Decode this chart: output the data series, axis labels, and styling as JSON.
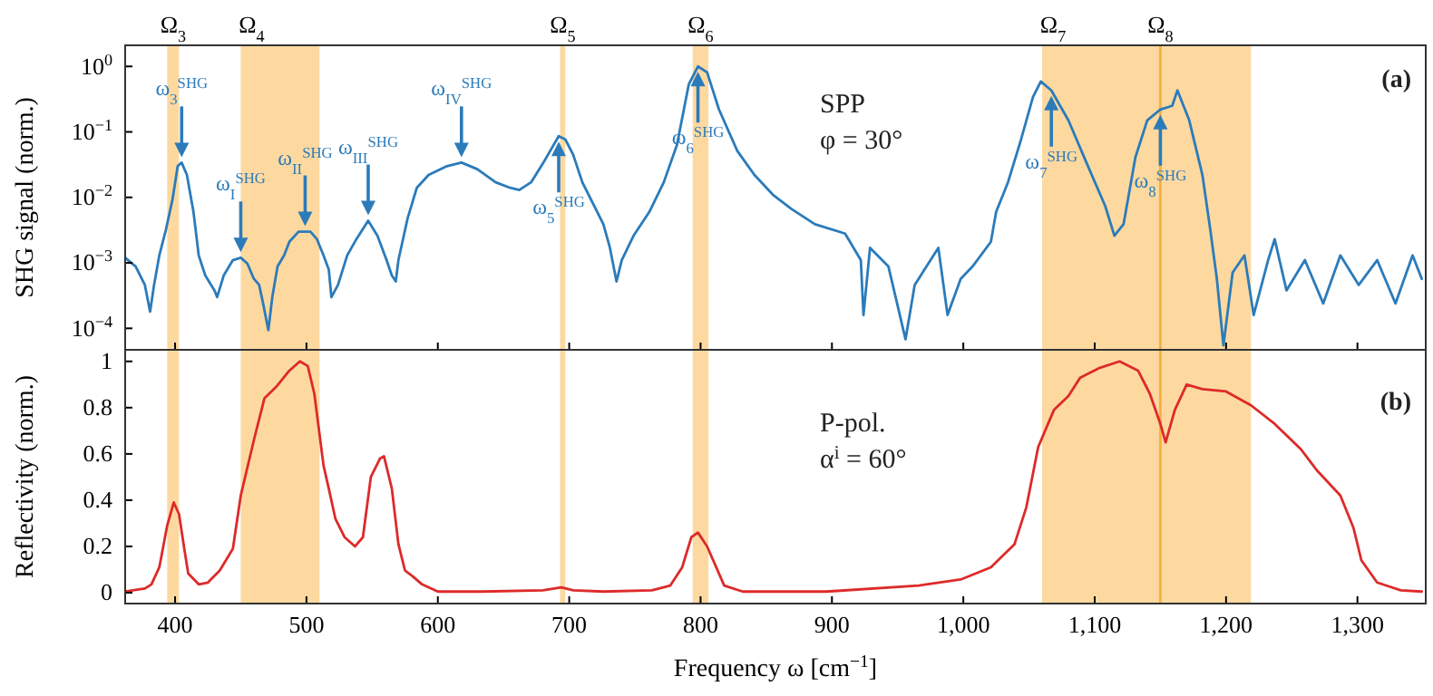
{
  "chart_data": [
    {
      "type": "line",
      "ylabel": "SHG signal (norm.)",
      "log": true,
      "xlim": [
        362,
        1352
      ],
      "ylim": [
        4.7e-05,
        2.1
      ],
      "tick_labels": "y",
      "xticks": [
        400,
        500,
        600,
        700,
        800,
        900,
        1000,
        1100,
        1200,
        1300
      ],
      "yticks": [
        {
          "value": 0.0001,
          "label": "10$^{−4}$"
        },
        {
          "value": 0.001,
          "label": "10$^{−3}$"
        },
        {
          "value": 0.01,
          "label": "10$^{−2}$"
        },
        {
          "value": 0.1,
          "label": "10$^{−1}$"
        },
        {
          "value": 1,
          "label": "10$^{0}$"
        }
      ],
      "bands": [
        {
          "axis": "x",
          "from": 394,
          "to": 403,
          "color": "#fdd9a0",
          "label": "Ω$_{3}$"
        },
        {
          "axis": "x",
          "from": 450,
          "to": 510,
          "color": "#fdd9a0",
          "label": "Ω$_{4}$"
        },
        {
          "axis": "x",
          "from": 693,
          "to": 697,
          "color": "#fdd9a0",
          "label": "Ω$_{5}$"
        },
        {
          "axis": "x",
          "from": 794,
          "to": 806,
          "color": "#fdd9a0",
          "label": "Ω$_{6}$"
        },
        {
          "axis": "x",
          "from": 1060,
          "to": 1219,
          "color": "#fdd9a0",
          "label": "Ω$_{7}$"
        }
      ],
      "ref_lines": [
        {
          "axis": "x",
          "value": 1150,
          "color": "#f8b044",
          "label": "Ω$_{8}$"
        }
      ],
      "series": [
        {
          "color": "#2b7bba",
          "x": [
            362,
            370,
            377,
            381,
            384,
            388,
            393,
            398,
            402,
            405,
            409,
            414,
            418,
            423,
            430,
            432,
            437,
            444,
            450,
            455,
            460,
            464,
            467,
            471,
            474,
            478,
            483,
            487,
            494,
            503,
            508,
            513,
            517,
            519,
            524,
            531,
            538,
            547,
            554,
            561,
            565,
            568,
            570,
            577,
            584,
            593,
            607,
            618,
            630,
            644,
            655,
            662,
            671,
            680,
            692,
            697,
            703,
            710,
            719,
            726,
            731,
            736,
            740,
            749,
            761,
            772,
            782,
            791,
            798,
            805,
            814,
            828,
            841,
            855,
            869,
            887,
            910,
            922,
            924,
            929,
            943,
            956,
            963,
            981,
            988,
            998,
            1007,
            1021,
            1025,
            1034,
            1044,
            1053,
            1059,
            1067,
            1080,
            1094,
            1108,
            1115,
            1122,
            1131,
            1140,
            1150,
            1159,
            1163,
            1172,
            1182,
            1188,
            1193,
            1198,
            1205,
            1214,
            1221,
            1232,
            1237,
            1246,
            1260,
            1274,
            1287,
            1301,
            1315,
            1329,
            1342,
            1349
          ],
          "values": [
            0.0012,
            0.00088,
            0.00046,
            0.00018,
            0.00046,
            0.0013,
            0.0032,
            0.0092,
            0.03,
            0.034,
            0.022,
            0.006,
            0.0013,
            0.00064,
            0.00038,
            0.0003,
            0.00064,
            0.0011,
            0.0012,
            0.00098,
            0.00057,
            0.00046,
            0.00024,
            9.4e-05,
            0.0003,
            0.00088,
            0.0013,
            0.0021,
            0.003,
            0.003,
            0.0023,
            0.0013,
            0.00079,
            0.0003,
            0.00046,
            0.0013,
            0.0023,
            0.0044,
            0.0026,
            0.0011,
            0.00064,
            0.00052,
            0.0011,
            0.0048,
            0.014,
            0.022,
            0.03,
            0.034,
            0.027,
            0.017,
            0.014,
            0.013,
            0.017,
            0.033,
            0.086,
            0.077,
            0.045,
            0.017,
            0.0074,
            0.0039,
            0.0017,
            0.00052,
            0.0011,
            0.0026,
            0.006,
            0.017,
            0.063,
            0.53,
            1.0,
            0.81,
            0.22,
            0.051,
            0.022,
            0.011,
            0.0067,
            0.0039,
            0.0028,
            0.0011,
            0.00016,
            0.0017,
            0.00088,
            6.8e-05,
            0.00046,
            0.0017,
            0.00016,
            0.00057,
            0.00088,
            0.0021,
            0.006,
            0.017,
            0.077,
            0.34,
            0.59,
            0.43,
            0.15,
            0.033,
            0.0074,
            0.0026,
            0.0039,
            0.041,
            0.15,
            0.22,
            0.25,
            0.43,
            0.15,
            0.022,
            0.0032,
            0.00057,
            5.5e-05,
            0.00071,
            0.0013,
            0.00016,
            0.0011,
            0.0023,
            0.00038,
            0.0011,
            0.00024,
            0.0013,
            0.00046,
            0.0011,
            0.00024,
            0.0013,
            0.00057
          ]
        }
      ],
      "annotations": [
        {
          "text": "ω$_{3}$$^{SHG}$",
          "x": 405,
          "y": 0.034
        },
        {
          "text": "ω$_{I}$$^{SHG}$",
          "x": 450,
          "y": 0.0012
        },
        {
          "text": "ω$_{II}$$^{SHG}$",
          "x": 499,
          "y": 0.003
        },
        {
          "text": "ω$_{III}$$^{SHG}$",
          "x": 547,
          "y": 0.0044
        },
        {
          "text": "ω$_{IV}$$^{SHG}$",
          "x": 618,
          "y": 0.034
        },
        {
          "text": "ω$_{5}$$^{SHG}$",
          "x": 692,
          "y": 0.086
        },
        {
          "text": "ω$_{6}$$^{SHG}$",
          "x": 798,
          "y": 1.0
        },
        {
          "text": "ω$_{7}$$^{SHG}$",
          "x": 1067,
          "y": 0.43
        },
        {
          "text": "ω$_{8}$$^{SHG}$",
          "x": 1150,
          "y": 0.22
        },
        "SPP",
        "φ = 30°",
        "(a)"
      ]
    },
    {
      "type": "line",
      "xlabel": "Frequency ω [cm$^{−1}$]",
      "ylabel": "Reflectivity (norm.)",
      "xlim": [
        362,
        1352
      ],
      "ylim": [
        -0.047,
        1.05
      ],
      "xticks": [
        400,
        500,
        600,
        700,
        800,
        900,
        {
          "value": 1000,
          "label": "1,000"
        },
        {
          "value": 1100,
          "label": "1,100"
        },
        {
          "value": 1200,
          "label": "1,200"
        },
        {
          "value": 1300,
          "label": "1,300"
        }
      ],
      "yticks": [
        0,
        0.2,
        0.4,
        0.6,
        0.8,
        1
      ],
      "bands": [
        {
          "axis": "x",
          "from": 394,
          "to": 403,
          "color": "#fdd9a0"
        },
        {
          "axis": "x",
          "from": 450,
          "to": 510,
          "color": "#fdd9a0"
        },
        {
          "axis": "x",
          "from": 693,
          "to": 697,
          "color": "#fdd9a0"
        },
        {
          "axis": "x",
          "from": 794,
          "to": 806,
          "color": "#fdd9a0"
        },
        {
          "axis": "x",
          "from": 1060,
          "to": 1219,
          "color": "#fdd9a0"
        }
      ],
      "ref_lines": [
        {
          "axis": "x",
          "value": 1150,
          "color": "#f8b044"
        }
      ],
      "series": [
        {
          "color": "#dd2a2a",
          "x": [
            362,
            377,
            382,
            388,
            394,
            399,
            403,
            407,
            410,
            418,
            425,
            434,
            444,
            450,
            460,
            468,
            477,
            487,
            495,
            501,
            506,
            513,
            517,
            522,
            529,
            537,
            543,
            549,
            556,
            559,
            565,
            570,
            575,
            581,
            588,
            600,
            634,
            680,
            694,
            703,
            726,
            763,
            777,
            786,
            793,
            798,
            805,
            818,
            832,
            896,
            966,
            998,
            1021,
            1039,
            1048,
            1057,
            1069,
            1080,
            1089,
            1103,
            1119,
            1133,
            1142,
            1150,
            1154,
            1161,
            1170,
            1182,
            1200,
            1219,
            1237,
            1257,
            1269,
            1287,
            1297,
            1303,
            1315,
            1333,
            1349
          ],
          "values": [
            0.005,
            0.018,
            0.036,
            0.11,
            0.29,
            0.39,
            0.34,
            0.19,
            0.083,
            0.036,
            0.044,
            0.096,
            0.19,
            0.42,
            0.66,
            0.84,
            0.89,
            0.96,
            1.0,
            0.98,
            0.86,
            0.55,
            0.45,
            0.32,
            0.24,
            0.2,
            0.24,
            0.5,
            0.58,
            0.59,
            0.45,
            0.21,
            0.096,
            0.07,
            0.036,
            0.005,
            0.005,
            0.01,
            0.023,
            0.01,
            0.005,
            0.01,
            0.031,
            0.11,
            0.24,
            0.26,
            0.2,
            0.031,
            0.005,
            0.005,
            0.031,
            0.057,
            0.11,
            0.21,
            0.37,
            0.63,
            0.79,
            0.85,
            0.93,
            0.97,
            1.0,
            0.96,
            0.86,
            0.73,
            0.65,
            0.79,
            0.9,
            0.88,
            0.87,
            0.81,
            0.73,
            0.62,
            0.53,
            0.42,
            0.28,
            0.14,
            0.044,
            0.01,
            0.005
          ]
        }
      ],
      "annotations": [
        "P-pol.",
        "α$^{i}$ = 60°",
        "(b)"
      ]
    }
  ]
}
